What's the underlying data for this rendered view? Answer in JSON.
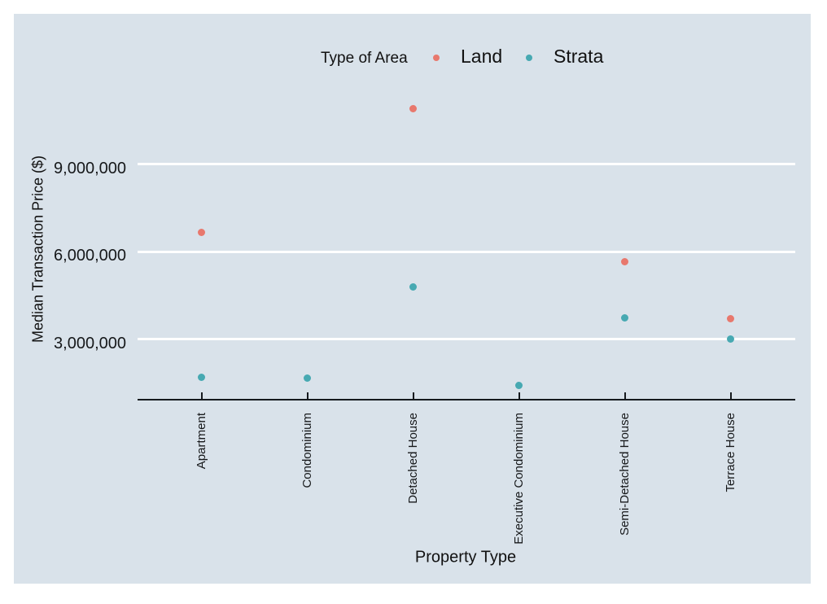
{
  "legend": {
    "title": "Type of Area",
    "position": "top-center"
  },
  "chart_data": {
    "type": "scatter",
    "title": "",
    "xlabel": "Property Type",
    "ylabel": "Median Transaction Price ($)",
    "categories": [
      "Apartment",
      "Condominium",
      "Detached House",
      "Executive Condominium",
      "Semi-Detached House",
      "Terrace House"
    ],
    "series": [
      {
        "name": "Land",
        "color": "#e8786d",
        "values": [
          6650000,
          null,
          10900000,
          null,
          5650000,
          3700000
        ]
      },
      {
        "name": "Strata",
        "color": "#47a9b2",
        "values": [
          1700000,
          1650000,
          4800000,
          1400000,
          3720000,
          3000000
        ]
      }
    ],
    "yticks": [
      {
        "value": 3000000,
        "label": "3,000,000"
      },
      {
        "value": 6000000,
        "label": "6,000,000"
      },
      {
        "value": 9000000,
        "label": "9,000,000"
      }
    ],
    "ylim": [
      900000,
      14250000
    ],
    "grid": "horizontal-white",
    "legend_position": "top"
  },
  "colors": {
    "figure_background": "#ffffff",
    "plot_background": "#d9e2ea",
    "gridline": "#ffffff",
    "axis_line": "#161a1e",
    "text": "#16181a",
    "land": "#e8786d",
    "strata": "#47a9b2"
  }
}
